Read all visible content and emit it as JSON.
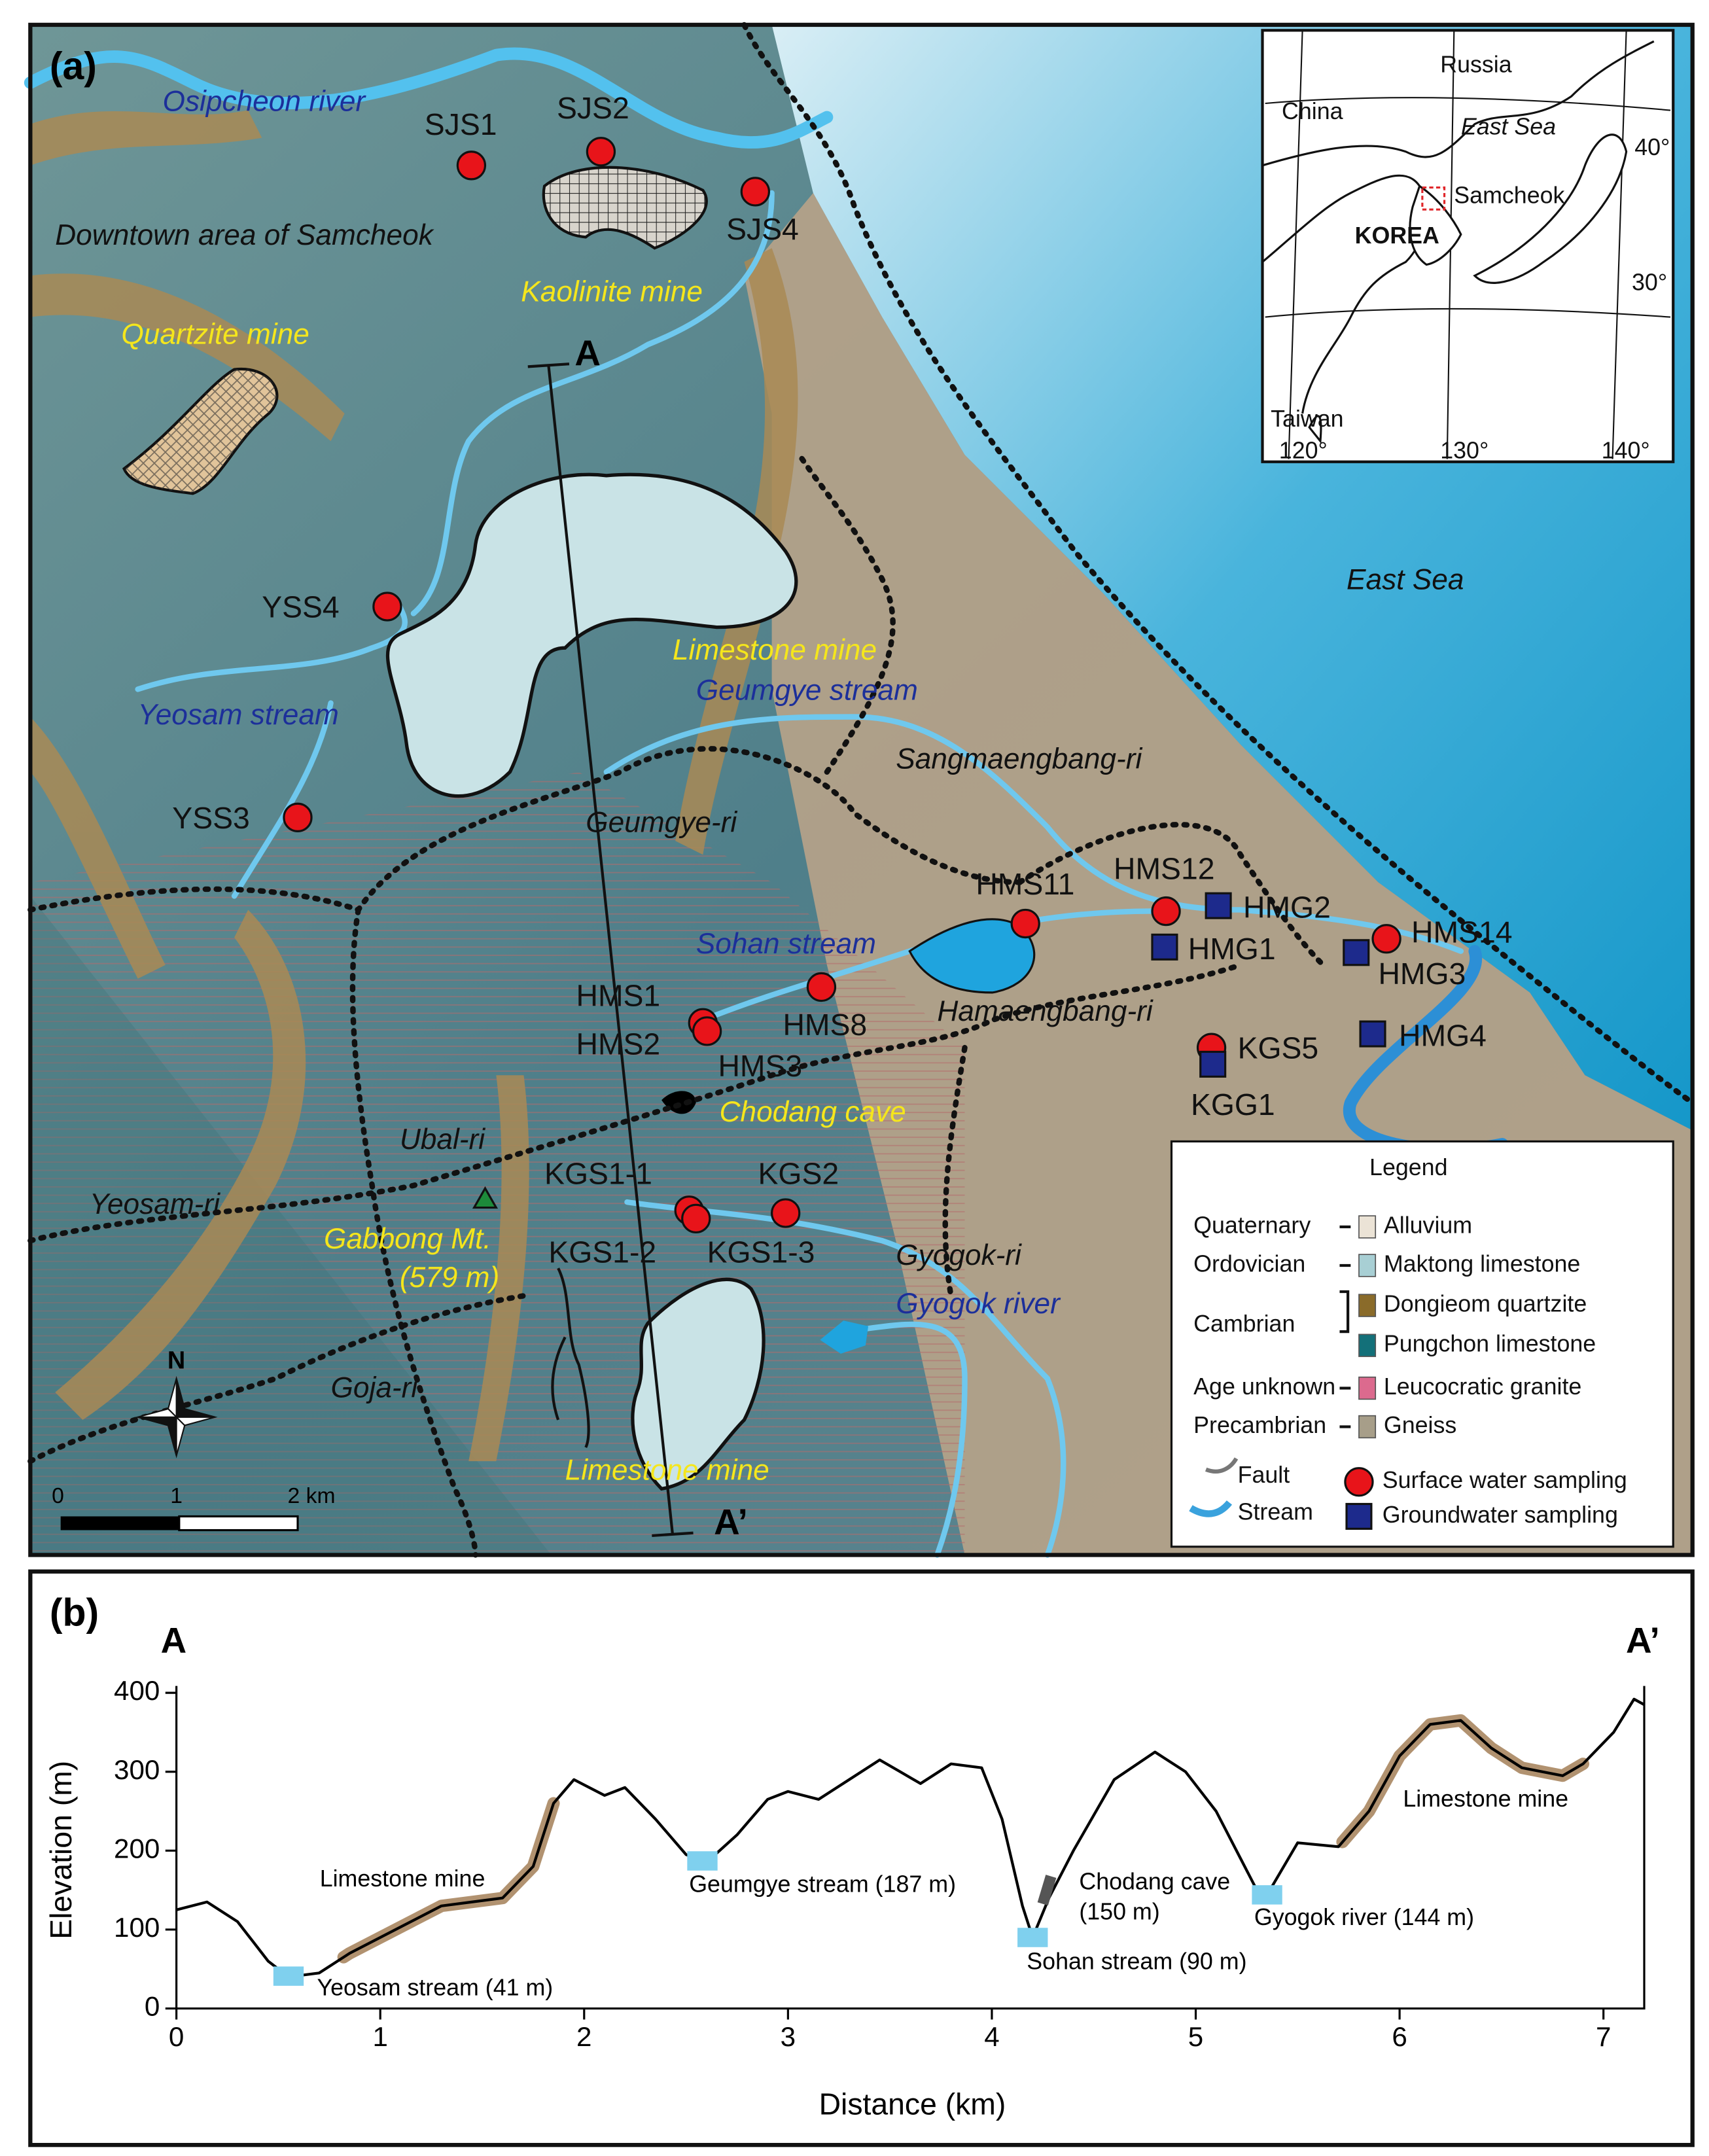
{
  "panel_a": {
    "label": "(a)",
    "places": [
      {
        "text": "Osipcheon river",
        "color": "#1c2f9a"
      },
      {
        "text": "Downtown area of Samcheok",
        "color": "#111111"
      },
      {
        "text": "Kaolinite mine",
        "color": "#f5e61c"
      },
      {
        "text": "Quartzite mine",
        "color": "#f5e61c"
      },
      {
        "text": "Limestone mine",
        "color": "#f5e61c"
      },
      {
        "text": "Geumgye stream",
        "color": "#1c2f9a"
      },
      {
        "text": "Yeosam stream",
        "color": "#1c2f9a"
      },
      {
        "text": "Sangmaengbang-ri",
        "color": "#111111"
      },
      {
        "text": "Geumgye-ri",
        "color": "#111111"
      },
      {
        "text": "East Sea",
        "color": "#111111"
      },
      {
        "text": "Sohan stream",
        "color": "#1c2f9a"
      },
      {
        "text": "Hamaengbang-ri",
        "color": "#111111"
      },
      {
        "text": "Chodang cave",
        "color": "#f5e61c"
      },
      {
        "text": "Ubal-ri",
        "color": "#111111"
      },
      {
        "text": "Yeosam-ri",
        "color": "#111111"
      },
      {
        "text": "Gabbong Mt.",
        "color": "#f5e61c"
      },
      {
        "text": "(579 m)",
        "color": "#f5e61c"
      },
      {
        "text": "Gyogok-ri",
        "color": "#111111"
      },
      {
        "text": "Gyogok river",
        "color": "#1c2f9a"
      },
      {
        "text": "Goja-ri",
        "color": "#111111"
      },
      {
        "text": "Limestone mine",
        "color": "#f5e61c"
      }
    ],
    "surface_water": [
      "SJS1",
      "SJS2",
      "SJS4",
      "YSS4",
      "YSS3",
      "HMS11",
      "HMS12",
      "HMS14",
      "HMS8",
      "HMS1",
      "HMS2",
      "HMS3",
      "KGS5",
      "KGS1-1",
      "KGS2",
      "KGS1-2",
      "KGS1-3"
    ],
    "groundwater": [
      "HMG2",
      "HMG1",
      "HMG3",
      "HMG4",
      "KGG1"
    ],
    "section_ends": [
      "A",
      "A’"
    ],
    "scale_bar": [
      "0",
      "1",
      "2 km"
    ],
    "north": "N",
    "inset": {
      "labels": [
        "Russia",
        "China",
        "East Sea",
        "KOREA",
        "Samcheok",
        "Taiwan"
      ],
      "lat_labels": [
        "40°",
        "30°"
      ],
      "lon_labels": [
        "120°",
        "130°",
        "140°"
      ]
    },
    "legend": {
      "title": "Legend",
      "eras": [
        {
          "name": "Quaternary",
          "units": [
            {
              "name": "Alluvium",
              "color": "#ebe3d6"
            }
          ]
        },
        {
          "name": "Ordovician",
          "units": [
            {
              "name": "Maktong limestone",
              "color": "#a8cfd4"
            }
          ]
        },
        {
          "name": "Cambrian",
          "units": [
            {
              "name": "Dongieom quartzite",
              "color": "#8a6b2a"
            },
            {
              "name": "Pungchon limestone",
              "color": "#137079"
            }
          ]
        },
        {
          "name": "Age unknown",
          "units": [
            {
              "name": "Leucocratic granite",
              "color": "#dc6a8e"
            }
          ]
        },
        {
          "name": "Precambrian",
          "units": [
            {
              "name": "Gneiss",
              "color": "#a79e89"
            }
          ]
        }
      ],
      "symbols": [
        "Fault",
        "Stream",
        "Surface water sampling",
        "Groundwater sampling"
      ]
    }
  },
  "chart_data": {
    "type": "line",
    "panel_label": "(b)",
    "end_labels": [
      "A",
      "A’"
    ],
    "xlabel": "Distance (km)",
    "ylabel": "Elevation (m)",
    "color": "#000000",
    "x": [
      0,
      0.15,
      0.3,
      0.45,
      0.55,
      0.7,
      0.85,
      1.0,
      1.15,
      1.3,
      1.45,
      1.6,
      1.75,
      1.85,
      1.95,
      2.1,
      2.2,
      2.35,
      2.5,
      2.6,
      2.75,
      2.9,
      3.0,
      3.15,
      3.3,
      3.45,
      3.55,
      3.65,
      3.8,
      3.95,
      4.05,
      4.15,
      4.2,
      4.28,
      4.4,
      4.6,
      4.8,
      4.95,
      5.1,
      5.2,
      5.3,
      5.35,
      5.5,
      5.7,
      5.85,
      6.0,
      6.15,
      6.3,
      6.45,
      6.6,
      6.8,
      6.9,
      7.05,
      7.15,
      7.2
    ],
    "values": [
      125,
      135,
      110,
      60,
      40,
      45,
      70,
      90,
      110,
      130,
      135,
      140,
      180,
      260,
      290,
      270,
      280,
      240,
      195,
      185,
      220,
      265,
      275,
      265,
      290,
      315,
      300,
      285,
      310,
      305,
      240,
      130,
      90,
      140,
      200,
      290,
      325,
      300,
      250,
      200,
      150,
      144,
      210,
      205,
      250,
      320,
      360,
      365,
      330,
      305,
      295,
      310,
      350,
      392,
      385
    ],
    "streams": [
      {
        "label": "Yeosam stream (41 m)",
        "x": 0.55,
        "value": 41
      },
      {
        "label": "Geumgye stream (187 m)",
        "x": 2.58,
        "value": 187
      },
      {
        "label": "Sohan stream (90 m)",
        "x": 4.2,
        "value": 90
      },
      {
        "label": "Gyogok river (144 m)",
        "x": 5.35,
        "value": 144
      }
    ],
    "cave": {
      "label": [
        "Chodang cave",
        "(150 m)"
      ],
      "x": 4.27,
      "value": 150,
      "color": "#555555"
    },
    "mines": [
      {
        "label": "Limestone mine",
        "x_range": [
          0.82,
          1.85
        ],
        "color": "#a98660"
      },
      {
        "label": "Limestone mine",
        "x_range": [
          5.72,
          6.9
        ],
        "color": "#a98660"
      }
    ],
    "stream_color": "#7fd0ee",
    "xlim": [
      0,
      7.2
    ],
    "ylim": [
      0,
      400
    ],
    "xticks": [
      0,
      1,
      2,
      3,
      4,
      5,
      6,
      7
    ],
    "yticks": [
      0,
      100,
      200,
      300,
      400
    ]
  }
}
